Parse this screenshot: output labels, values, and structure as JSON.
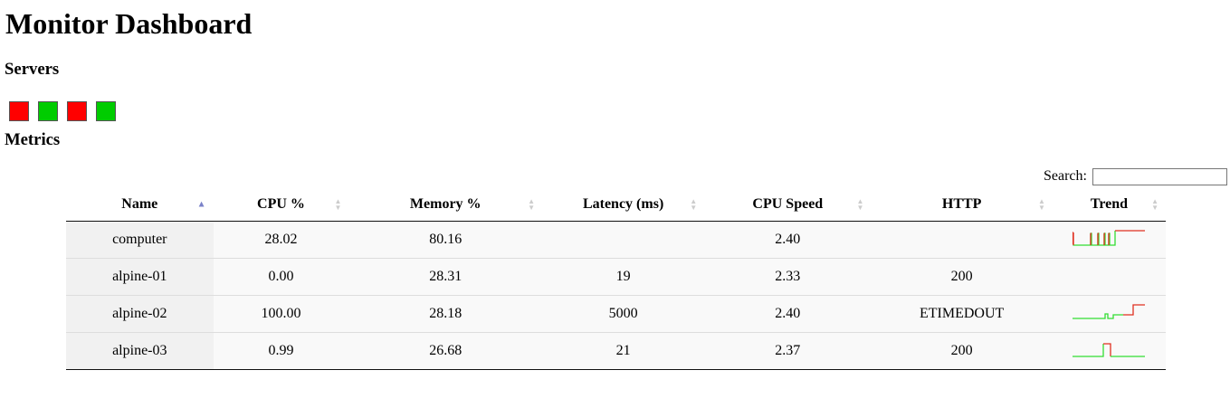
{
  "page": {
    "title": "Monitor Dashboard",
    "servers_heading": "Servers",
    "metrics_heading": "Metrics"
  },
  "servers": [
    {
      "status": "down",
      "color": "#ff0000"
    },
    {
      "status": "up",
      "color": "#00cc00"
    },
    {
      "status": "down",
      "color": "#ff0000"
    },
    {
      "status": "up",
      "color": "#00cc00"
    }
  ],
  "search": {
    "label": "Search:",
    "value": ""
  },
  "table": {
    "sorted_column": "Name",
    "sort_direction": "ascending",
    "columns": [
      "Name",
      "CPU %",
      "Memory %",
      "Latency (ms)",
      "CPU Speed",
      "HTTP",
      "Trend"
    ],
    "rows": [
      {
        "name": "computer",
        "cpu": "28.02",
        "memory": "80.16",
        "latency": "",
        "cpu_speed": "2.40",
        "http": "",
        "trend": "flapping"
      },
      {
        "name": "alpine-01",
        "cpu": "0.00",
        "memory": "28.31",
        "latency": "19",
        "cpu_speed": "2.33",
        "http": "200",
        "trend": "none"
      },
      {
        "name": "alpine-02",
        "cpu": "100.00",
        "memory": "28.18",
        "latency": "5000",
        "cpu_speed": "2.40",
        "http": "ETIMEDOUT",
        "trend": "rising"
      },
      {
        "name": "alpine-03",
        "cpu": "0.99",
        "memory": "26.68",
        "latency": "21",
        "cpu_speed": "2.37",
        "http": "200",
        "trend": "spike"
      }
    ]
  },
  "colors": {
    "up": "#00cc00",
    "down": "#ff0000",
    "trend_up": "#33dd33",
    "trend_down": "#e03020",
    "sort_active": "#7a82c9",
    "sort_inactive": "#cccccc"
  }
}
